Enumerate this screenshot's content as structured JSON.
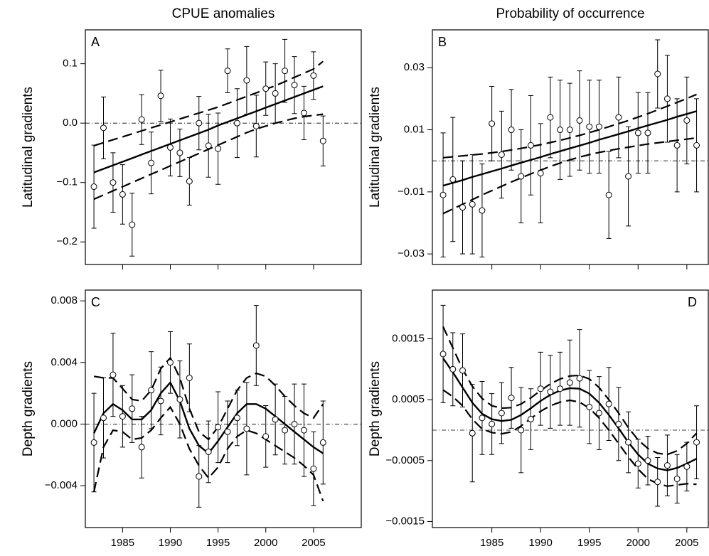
{
  "chart_data": [
    {
      "type": "errorbar",
      "title": "CPUE anomalies",
      "panel": "A",
      "panel_corner": "top-left",
      "ylabel": "Latitudinal gradients",
      "color": "#000000",
      "x": [
        1982,
        1983,
        1984,
        1985,
        1986,
        1987,
        1988,
        1989,
        1990,
        1991,
        1992,
        1993,
        1994,
        1995,
        1996,
        1997,
        1998,
        1999,
        2000,
        2001,
        2002,
        2003,
        2004,
        2005,
        2006
      ],
      "values": [
        -0.107,
        -0.008,
        -0.1,
        -0.12,
        -0.171,
        0.006,
        -0.067,
        0.046,
        -0.041,
        -0.05,
        -0.098,
        0.0,
        -0.038,
        -0.043,
        0.088,
        0.0,
        0.072,
        -0.005,
        0.058,
        0.05,
        0.088,
        0.064,
        0.017,
        0.08,
        -0.03
      ],
      "errors": [
        0.07,
        0.052,
        0.05,
        0.05,
        0.053,
        0.042,
        0.052,
        0.043,
        0.048,
        0.04,
        0.04,
        0.045,
        0.053,
        0.06,
        0.037,
        0.058,
        0.057,
        0.052,
        0.045,
        0.05,
        0.053,
        0.048,
        0.045,
        0.04,
        0.042
      ],
      "fit": [
        -0.083,
        -0.077,
        -0.071,
        -0.065,
        -0.059,
        -0.053,
        -0.047,
        -0.041,
        -0.035,
        -0.029,
        -0.023,
        -0.017,
        -0.011,
        -0.004,
        0.002,
        0.008,
        0.014,
        0.02,
        0.026,
        0.032,
        0.038,
        0.044,
        0.05,
        0.056,
        0.062
      ],
      "upper": [
        -0.038,
        -0.033,
        -0.028,
        -0.023,
        -0.018,
        -0.013,
        -0.008,
        -0.003,
        0.002,
        0.007,
        0.012,
        0.017,
        0.022,
        0.027,
        0.033,
        0.039,
        0.045,
        0.051,
        0.057,
        0.063,
        0.07,
        0.077,
        0.084,
        0.091,
        0.104
      ],
      "lower": [
        -0.128,
        -0.121,
        -0.114,
        -0.107,
        -0.1,
        -0.093,
        -0.086,
        -0.079,
        -0.072,
        -0.065,
        -0.058,
        -0.051,
        -0.044,
        -0.037,
        -0.03,
        -0.023,
        -0.016,
        -0.01,
        -0.005,
        0.0,
        0.004,
        0.008,
        0.011,
        0.013,
        0.015
      ],
      "refline": 0,
      "xlim": [
        1981.1,
        2010
      ],
      "xticks": [
        1985,
        1990,
        1995,
        2000,
        2005
      ],
      "show_xtick_labels": false,
      "ylim": [
        -0.238,
        0.157
      ],
      "yticks": [
        0.1,
        {
          "value": 0,
          "label": "0.0"
        },
        {
          "value": -0.1,
          "label": "−0.1"
        },
        {
          "value": -0.2,
          "label": "−0.2"
        }
      ]
    },
    {
      "type": "errorbar",
      "title": "Probability of occurrence",
      "panel": "B",
      "panel_corner": "top-left",
      "ylabel": "Latitudinal gradients",
      "color": "#000000",
      "x": [
        1980,
        1981,
        1982,
        1983,
        1984,
        1985,
        1986,
        1987,
        1988,
        1989,
        1990,
        1991,
        1992,
        1993,
        1994,
        1995,
        1996,
        1997,
        1998,
        1999,
        2000,
        2001,
        2002,
        2003,
        2004,
        2005,
        2006
      ],
      "values": [
        -0.011,
        -0.006,
        -0.015,
        -0.014,
        -0.016,
        0.012,
        0.002,
        0.01,
        -0.005,
        0.005,
        -0.004,
        0.014,
        0.01,
        0.01,
        0.013,
        0.011,
        0.011,
        -0.011,
        0.014,
        -0.005,
        0.009,
        0.009,
        0.028,
        0.02,
        0.005,
        0.013,
        0.005
      ],
      "errors": [
        0.02,
        0.02,
        0.015,
        0.016,
        0.015,
        0.012,
        0.014,
        0.013,
        0.015,
        0.016,
        0.016,
        0.013,
        0.016,
        0.015,
        0.016,
        0.015,
        0.015,
        0.014,
        0.013,
        0.016,
        0.013,
        0.013,
        0.011,
        0.014,
        0.015,
        0.014,
        0.015
      ],
      "fit": [
        -0.008,
        -0.0071,
        -0.0062,
        -0.0052,
        -0.0043,
        -0.0034,
        -0.0025,
        -0.0015,
        -0.0006,
        0.0003,
        0.0012,
        0.0022,
        0.0031,
        0.004,
        0.0049,
        0.0058,
        0.0068,
        0.0077,
        0.0086,
        0.0095,
        0.0105,
        0.0114,
        0.0123,
        0.0132,
        0.0142,
        0.0151,
        0.016
      ],
      "upper": [
        0.001,
        0.0013,
        0.0016,
        0.0019,
        0.0022,
        0.0026,
        0.003,
        0.0035,
        0.004,
        0.0046,
        0.0052,
        0.0059,
        0.0066,
        0.0074,
        0.0082,
        0.0091,
        0.01,
        0.011,
        0.012,
        0.013,
        0.0141,
        0.0152,
        0.0164,
        0.0176,
        0.0188,
        0.0201,
        0.0214
      ],
      "lower": [
        -0.017,
        -0.0155,
        -0.014,
        -0.0125,
        -0.011,
        -0.0096,
        -0.0082,
        -0.0068,
        -0.0055,
        -0.0042,
        -0.003,
        -0.0018,
        -0.0007,
        0.0003,
        0.0012,
        0.002,
        0.0027,
        0.0033,
        0.0039,
        0.0044,
        0.0049,
        0.0054,
        0.0058,
        0.0062,
        0.0066,
        0.007,
        0.0074
      ],
      "refline": 0,
      "xlim": [
        1978.9,
        2007.2
      ],
      "xticks": [
        1985,
        1990,
        1995,
        2000,
        2005
      ],
      "show_xtick_labels": false,
      "ylim": [
        -0.0334,
        0.0422
      ],
      "yticks": [
        0.03,
        0.01,
        {
          "value": -0.01,
          "label": "−0.01"
        },
        {
          "value": -0.03,
          "label": "−0.03"
        }
      ]
    },
    {
      "type": "errorbar",
      "panel": "C",
      "panel_corner": "top-left",
      "ylabel": "Depth gradients",
      "color": "#000000",
      "x": [
        1982,
        1983,
        1984,
        1985,
        1986,
        1987,
        1988,
        1989,
        1990,
        1991,
        1992,
        1993,
        1994,
        1995,
        1996,
        1997,
        1998,
        1999,
        2000,
        2001,
        2002,
        2003,
        2004,
        2005,
        2006
      ],
      "values": [
        -0.0012,
        0.0004,
        0.0032,
        0.0005,
        0.001,
        -0.0015,
        0.0022,
        0.0015,
        0.004,
        0.0016,
        0.003,
        -0.0034,
        -0.0018,
        -0.0002,
        -0.0005,
        0.0004,
        -0.0003,
        0.0051,
        -0.0008,
        0.0003,
        -0.0004,
        0.0,
        -0.0004,
        -0.0029,
        -0.0012
      ],
      "errors": [
        0.0032,
        0.0026,
        0.0027,
        0.002,
        0.0022,
        0.002,
        0.0025,
        0.0022,
        0.002,
        0.0025,
        0.0022,
        0.002,
        0.002,
        0.0023,
        0.002,
        0.0018,
        0.003,
        0.0026,
        0.002,
        0.0023,
        0.0022,
        0.0026,
        0.003,
        0.0024,
        0.0027
      ],
      "fit": [
        -0.0006,
        0.0007,
        0.0013,
        0.0009,
        0.0003,
        0.0003,
        0.0009,
        0.002,
        0.0027,
        0.0015,
        -0.0003,
        -0.0014,
        -0.0019,
        -0.0011,
        -0.0002,
        0.0007,
        0.0013,
        0.0013,
        0.001,
        0.0005,
        0.0,
        -0.0005,
        -0.001,
        -0.0015,
        -0.0019
      ],
      "upper": [
        0.0031,
        0.003,
        0.003,
        0.0023,
        0.0016,
        0.0015,
        0.0022,
        0.0036,
        0.0043,
        0.003,
        0.001,
        -0.0005,
        -0.001,
        -0.0002,
        0.001,
        0.0022,
        0.003,
        0.0033,
        0.0031,
        0.0025,
        0.0018,
        0.0012,
        0.0007,
        0.0004,
        0.0013
      ],
      "lower": [
        -0.0044,
        -0.0015,
        -0.0004,
        -0.0005,
        -0.001,
        -0.0009,
        -0.0004,
        0.0004,
        0.0011,
        0.0,
        -0.0016,
        -0.0027,
        -0.0035,
        -0.0028,
        -0.0016,
        -0.0008,
        -0.0004,
        -0.0006,
        -0.001,
        -0.0014,
        -0.0018,
        -0.0022,
        -0.0027,
        -0.0033,
        -0.005
      ],
      "refline": 0,
      "xlim": [
        1981.1,
        2010
      ],
      "xticks": [
        1985,
        1990,
        1995,
        2000,
        2005
      ],
      "show_xtick_labels": true,
      "ylim": [
        -0.00672,
        0.0087
      ],
      "yticks": [
        0.008,
        0.004,
        {
          "value": 0,
          "label": "0.000"
        },
        {
          "value": -0.004,
          "label": "−0.004"
        }
      ]
    },
    {
      "type": "errorbar",
      "panel": "D",
      "panel_corner": "top-right",
      "ylabel": "Depth gradients",
      "color": "#000000",
      "x": [
        1980,
        1981,
        1982,
        1983,
        1984,
        1985,
        1986,
        1987,
        1988,
        1989,
        1990,
        1991,
        1992,
        1993,
        1994,
        1995,
        1996,
        1997,
        1998,
        1999,
        2000,
        2001,
        2002,
        2003,
        2004,
        2005,
        2006
      ],
      "values": [
        0.00125,
        0.001,
        0.00098,
        -5e-05,
        0.0002,
        0.0001,
        0.00028,
        0.00053,
        0.0,
        0.00018,
        0.00068,
        0.00063,
        0.00068,
        0.00078,
        0.00085,
        0.00038,
        0.00028,
        0.00043,
        0.0001,
        -0.0002,
        -0.00055,
        -0.0005,
        -0.00085,
        -0.00058,
        -0.0008,
        -0.0006,
        -0.0002
      ],
      "errors": [
        0.0008,
        0.0006,
        0.0006,
        0.0008,
        0.0006,
        0.0005,
        0.0005,
        0.0005,
        0.0007,
        0.0005,
        0.0006,
        0.0006,
        0.0006,
        0.0007,
        0.0008,
        0.0006,
        0.0006,
        0.0006,
        0.0006,
        0.0005,
        0.0004,
        0.0004,
        0.0004,
        0.0005,
        0.0004,
        0.0004,
        0.0006
      ],
      "fit": [
        0.00118,
        0.00095,
        0.0007,
        0.00045,
        0.00027,
        0.00018,
        0.00015,
        0.00017,
        0.00025,
        0.00036,
        0.00048,
        0.00058,
        0.00065,
        0.00069,
        0.00068,
        0.0006,
        0.00045,
        0.00025,
        3e-05,
        -0.0002,
        -0.0004,
        -0.00055,
        -0.00063,
        -0.00066,
        -0.00062,
        -0.00055,
        -0.00047
      ],
      "upper": [
        0.0017,
        0.00135,
        0.001,
        0.00072,
        0.00052,
        0.0004,
        0.00036,
        0.00037,
        0.00043,
        0.00053,
        0.00065,
        0.00076,
        0.00084,
        0.00089,
        0.0009,
        0.00084,
        0.0007,
        0.0005,
        0.00028,
        4e-05,
        -0.00016,
        -0.0003,
        -0.00038,
        -0.0004,
        -0.00034,
        -0.00022,
        -5e-05
      ],
      "lower": [
        0.00066,
        0.00055,
        0.0004,
        0.00018,
        2e-05,
        -4e-05,
        -6e-05,
        -3e-05,
        7e-05,
        0.00019,
        0.00031,
        0.0004,
        0.00046,
        0.00049,
        0.00046,
        0.00036,
        0.0002,
        0.0,
        -0.00022,
        -0.00044,
        -0.00064,
        -0.0008,
        -0.00088,
        -0.00092,
        -0.0009,
        -0.00088,
        -0.00089
      ],
      "refline": 0,
      "xlim": [
        1978.9,
        2007.2
      ],
      "xticks": [
        1985,
        1990,
        1995,
        2000,
        2005
      ],
      "show_xtick_labels": true,
      "ylim": [
        -0.0016,
        0.0023
      ],
      "yticks": [
        0.0015,
        0.0005,
        {
          "value": -0.0005,
          "label": "−0.0005"
        },
        {
          "value": -0.0015,
          "label": "−0.0015"
        }
      ]
    }
  ]
}
